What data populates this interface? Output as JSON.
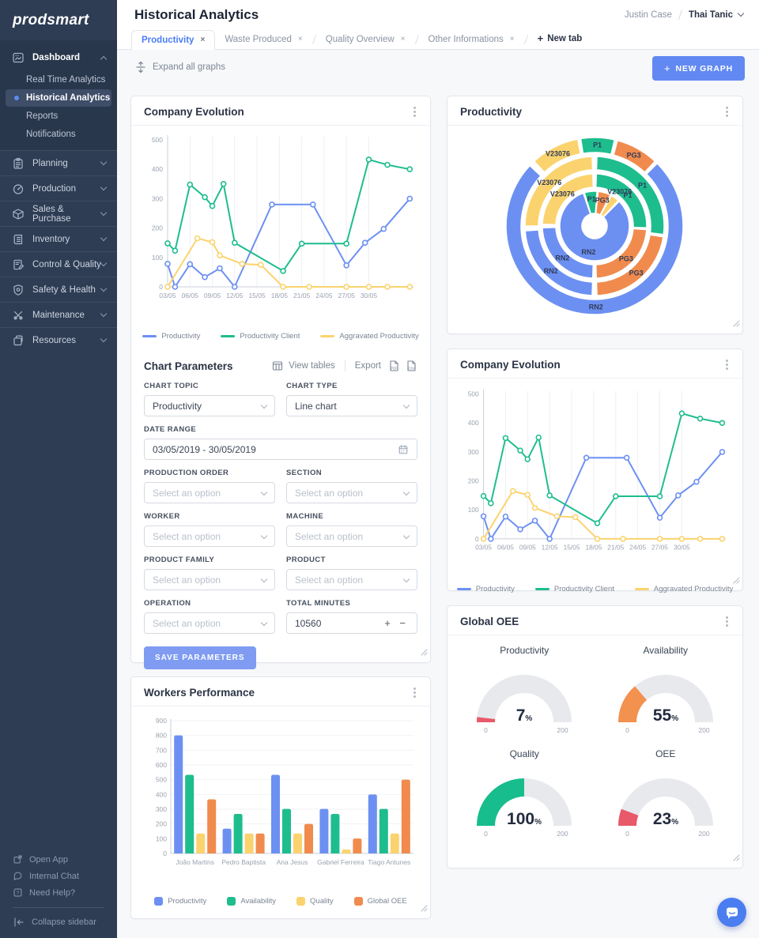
{
  "colors": {
    "blue": "#6c90f2",
    "green": "#1ebd8e",
    "yellow": "#fbd36e",
    "orange": "#f08b4d",
    "red": "#e8596a",
    "accent": "#4a7cf5"
  },
  "sidebar": {
    "logo": "prodsmart",
    "dashboard": {
      "label": "Dashboard",
      "icon": "dashboard-icon",
      "items": [
        {
          "label": "Real Time Analytics",
          "active": false
        },
        {
          "label": "Historical Analytics",
          "active": true
        },
        {
          "label": "Reports",
          "active": false
        },
        {
          "label": "Notifications",
          "active": false
        }
      ]
    },
    "menu": [
      {
        "label": "Planning",
        "icon": "planning-icon"
      },
      {
        "label": "Production",
        "icon": "production-icon"
      },
      {
        "label": "Sales & Purchase",
        "icon": "sales-icon"
      },
      {
        "label": "Inventory",
        "icon": "inventory-icon"
      },
      {
        "label": "Control & Quality",
        "icon": "control-icon"
      },
      {
        "label": "Safety & Health",
        "icon": "safety-icon"
      },
      {
        "label": "Maintenance",
        "icon": "maintenance-icon"
      },
      {
        "label": "Resources",
        "icon": "resources-icon"
      }
    ],
    "footer": [
      {
        "label": "Open App",
        "icon": "open-app-icon"
      },
      {
        "label": "Internal Chat",
        "icon": "chat-icon"
      },
      {
        "label": "Need Help?",
        "icon": "help-icon"
      }
    ],
    "collapse_label": "Collapse sidebar"
  },
  "header": {
    "title": "Historical Analytics",
    "user_name": "Justin Case",
    "company_name": "Thai Tanic"
  },
  "tabs": {
    "items": [
      {
        "label": "Productivity",
        "active": true
      },
      {
        "label": "Waste Produced",
        "active": false
      },
      {
        "label": "Quality Overview",
        "active": false
      },
      {
        "label": "Other Informations",
        "active": false
      }
    ],
    "new_tab_label": "New tab"
  },
  "toolbar": {
    "expand_label": "Expand all graphs",
    "new_graph_label": "NEW GRAPH"
  },
  "params": {
    "title": "Chart Parameters",
    "view_tables_label": "View tables",
    "export_label": "Export",
    "fields": [
      {
        "label": "CHART TOPIC",
        "type": "select",
        "value": "Productivity",
        "span": 1
      },
      {
        "label": "CHART TYPE",
        "type": "select",
        "value": "Line chart",
        "span": 1
      },
      {
        "label": "DATE RANGE",
        "type": "date",
        "value": "03/05/2019 - 30/05/2019",
        "span": 2
      },
      {
        "label": "PRODUCTION ORDER",
        "type": "select",
        "placeholder": "Select an option",
        "span": 1
      },
      {
        "label": "SECTION",
        "type": "select",
        "placeholder": "Select an option",
        "span": 1
      },
      {
        "label": "WORKER",
        "type": "select",
        "placeholder": "Select an option",
        "span": 1
      },
      {
        "label": "MACHINE",
        "type": "select",
        "placeholder": "Select an option",
        "span": 1
      },
      {
        "label": "PRODUCT FAMILY",
        "type": "select",
        "placeholder": "Select an option",
        "span": 1
      },
      {
        "label": "PRODUCT",
        "type": "select",
        "placeholder": "Select an option",
        "span": 1
      },
      {
        "label": "OPERATION",
        "type": "select",
        "placeholder": "Select an option",
        "span": 1
      },
      {
        "label": "TOTAL MINUTES",
        "type": "stepper",
        "value": "10560",
        "span": 1
      }
    ],
    "save_label": "SAVE PARAMETERS"
  },
  "chart_data": [
    {
      "id": "company_evolution",
      "type": "line",
      "title": "Company Evolution",
      "x_tick_days": [
        0,
        3,
        6,
        9,
        12,
        15,
        18,
        21,
        24,
        27
      ],
      "x_tick_labels": [
        "03/05",
        "06/05",
        "09/05",
        "12/05",
        "15/05",
        "18/05",
        "21/05",
        "24/05",
        "27/05",
        "30/05"
      ],
      "x_max": 33,
      "ylim": [
        0,
        500
      ],
      "y_ticks": [
        0,
        100,
        200,
        300,
        400,
        500
      ],
      "legend_position": "bottom",
      "grid": "vertical",
      "series": [
        {
          "name": "Productivity",
          "color": "#6c90f2",
          "points": [
            [
              0,
              78
            ],
            [
              1,
              0
            ],
            [
              3,
              77
            ],
            [
              5,
              33
            ],
            [
              7,
              63
            ],
            [
              9,
              0
            ],
            [
              14,
              280
            ],
            [
              19.5,
              280
            ],
            [
              24,
              73
            ],
            [
              26.5,
              150
            ],
            [
              29,
              197
            ],
            [
              32.5,
              300
            ]
          ]
        },
        {
          "name": "Productivity Client",
          "color": "#1ebd8e",
          "points": [
            [
              0,
              148
            ],
            [
              1,
              123
            ],
            [
              3,
              348
            ],
            [
              5,
              305
            ],
            [
              6,
              275
            ],
            [
              7.5,
              350
            ],
            [
              9,
              150
            ],
            [
              15.5,
              54
            ],
            [
              18,
              147
            ],
            [
              24,
              147
            ],
            [
              27,
              433
            ],
            [
              29.5,
              415
            ],
            [
              32.5,
              400
            ]
          ]
        },
        {
          "name": "Aggravated Productivity",
          "color": "#fbd36e",
          "points": [
            [
              0,
              0
            ],
            [
              4,
              165
            ],
            [
              6,
              152
            ],
            [
              7,
              107
            ],
            [
              10,
              78
            ],
            [
              12.5,
              75
            ],
            [
              15.5,
              0
            ],
            [
              19,
              0
            ],
            [
              24,
              0
            ],
            [
              27,
              0
            ],
            [
              29.5,
              0
            ],
            [
              32.5,
              0
            ]
          ]
        }
      ]
    },
    {
      "id": "productivity_sunburst",
      "type": "sunburst",
      "title": "Productivity",
      "colors": {
        "P1": "#1ebd8e",
        "PG3": "#f08b4d",
        "RN2": "#6c90f2",
        "V23076": "#fbd36e"
      },
      "rings": [
        {
          "segments": [
            {
              "label": "P1",
              "start": -17,
              "end": 4
            },
            {
              "label": "PG3",
              "start": 6,
              "end": 27
            },
            {
              "label": "V23076",
              "start": 29,
              "end": 43
            },
            {
              "label": "RN2",
              "start": 45,
              "end": 341
            }
          ]
        },
        {
          "segments": [
            {
              "label": "P1",
              "start": 2,
              "end": 92
            },
            {
              "label": "PG3",
              "start": 94,
              "end": 178
            },
            {
              "label": "RN2",
              "start": 182,
              "end": 268
            },
            {
              "label": "V23076",
              "start": 272,
              "end": 358
            }
          ]
        },
        {
          "segments": [
            {
              "label": "P1",
              "start": 2,
              "end": 97
            },
            {
              "label": "PG3",
              "start": 99,
              "end": 178
            },
            {
              "label": "RN2",
              "start": 182,
              "end": 266
            },
            {
              "label": "V23076",
              "start": 270,
              "end": 358
            }
          ]
        },
        {
          "segments": [
            {
              "label": "P1",
              "start": -9,
              "end": 13
            },
            {
              "label": "PG3",
              "start": 15,
              "end": 43
            },
            {
              "label": "RN2",
              "start": 45,
              "end": 313
            },
            {
              "label": "V23076",
              "start": 317,
              "end": 349
            }
          ]
        }
      ]
    },
    {
      "id": "global_oee",
      "type": "gauge-set",
      "title": "Global OEE",
      "min": 0,
      "max": 200,
      "gauges": [
        {
          "title": "Productivity",
          "value": 7,
          "color": "#e8596a"
        },
        {
          "title": "Availability",
          "value": 55,
          "color": "#f3914f"
        },
        {
          "title": "Quality",
          "value": 100,
          "color": "#17bd8c"
        },
        {
          "title": "OEE",
          "value": 23,
          "color": "#e8596a"
        }
      ]
    },
    {
      "id": "workers_performance",
      "type": "bar",
      "title": "Workers Performance",
      "categories": [
        "João Martins",
        "Pedro Baptista",
        "Ana Jesus",
        "Gabriel Ferreira",
        "Tiago Antunes"
      ],
      "ylim": [
        0,
        900
      ],
      "y_ticks": [
        0,
        100,
        200,
        300,
        400,
        500,
        600,
        700,
        800,
        900
      ],
      "legend_position": "bottom",
      "grid": "horizontal",
      "series": [
        {
          "name": "Productivity",
          "color": "#6c90f2",
          "values": [
            800,
            168,
            533,
            302,
            400
          ]
        },
        {
          "name": "Availability",
          "color": "#1ebd8e",
          "values": [
            533,
            268,
            302,
            268,
            302
          ]
        },
        {
          "name": "Quality",
          "color": "#fbd36e",
          "values": [
            135,
            135,
            135,
            27,
            135
          ]
        },
        {
          "name": "Global OEE",
          "color": "#f08b4d",
          "values": [
            367,
            135,
            200,
            101,
            500
          ]
        }
      ]
    }
  ]
}
